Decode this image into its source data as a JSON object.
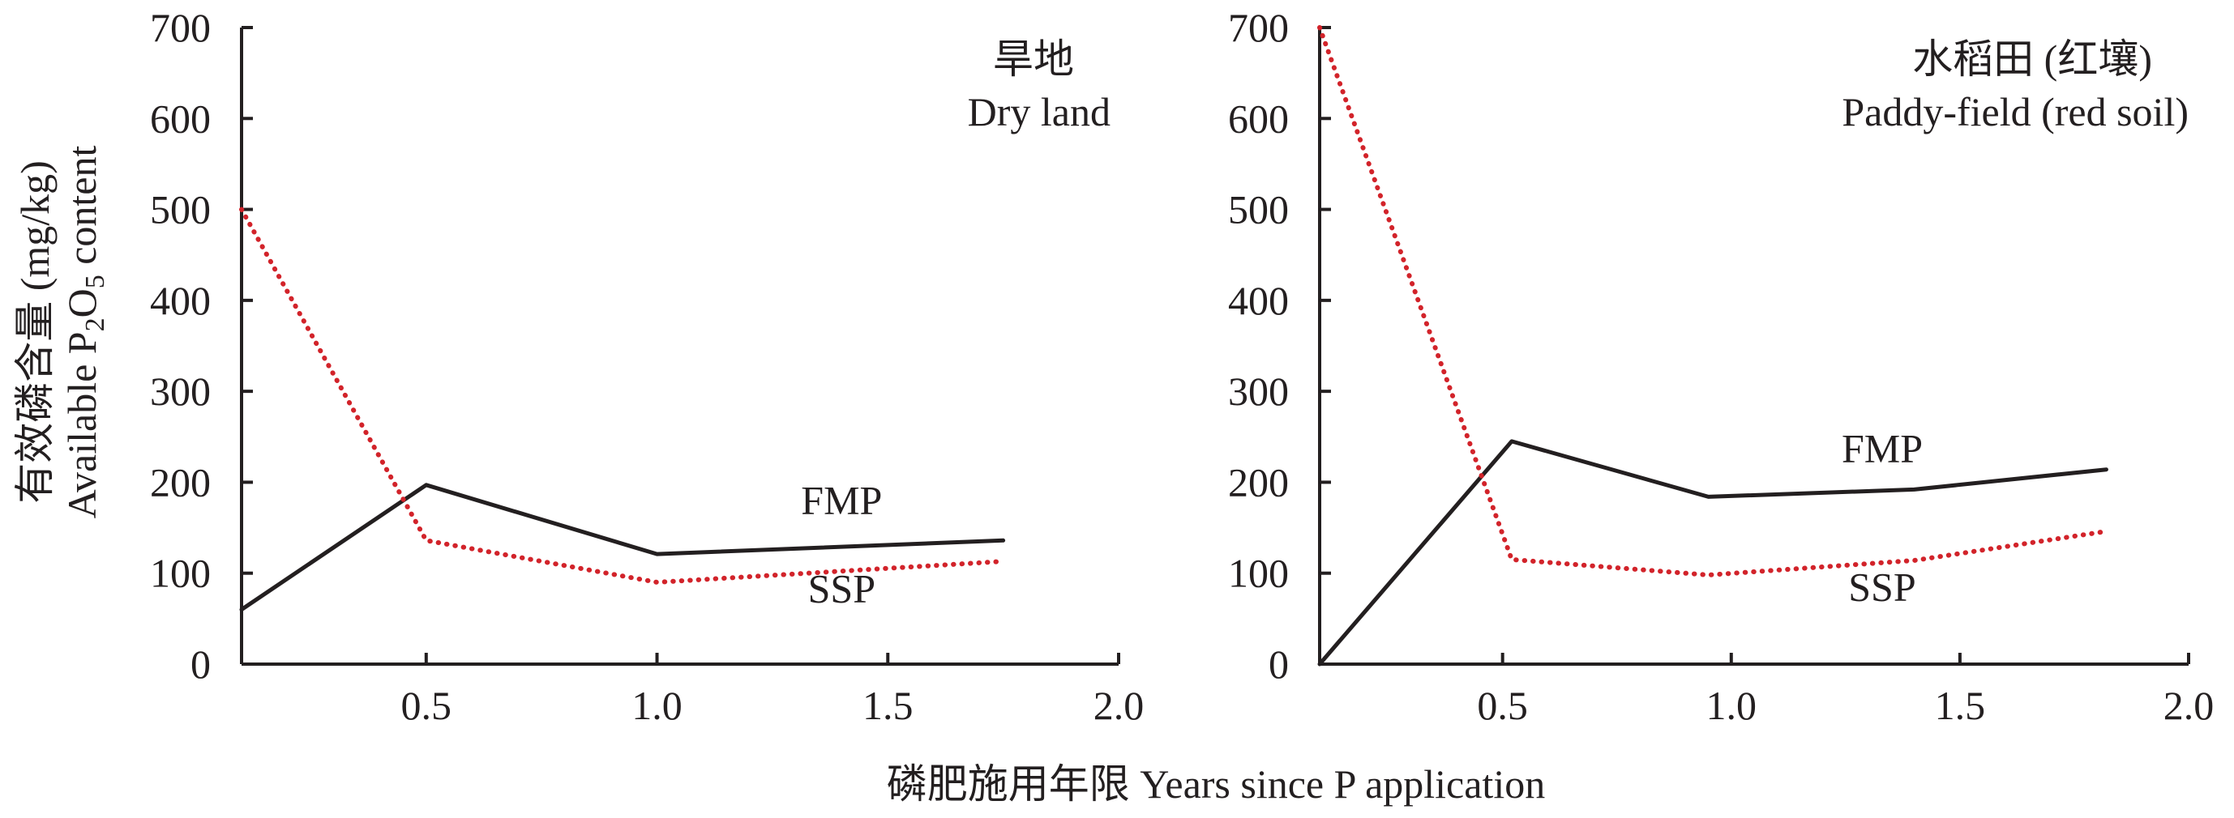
{
  "y_axis": {
    "label_cn": "有效磷含量 (mg/kg)",
    "label_en_pre": "Available P",
    "label_en_sub1": "2",
    "label_en_mid": "O",
    "label_en_sub2": "5",
    "label_en_post": " content"
  },
  "x_axis": {
    "label": "磷肥施用年限 Years since P application"
  },
  "colors": {
    "FMP": "#231f20",
    "SSP": "#d2232a"
  },
  "chart_data": [
    {
      "type": "line",
      "title_cn": "旱地",
      "title_en": "Dry land",
      "xlim": [
        0.1,
        2.0
      ],
      "ylim": [
        0,
        700
      ],
      "xticks": [
        0.5,
        1.0,
        1.5,
        2.0
      ],
      "xtick_labels": [
        "0.5",
        "1.0",
        "1.5",
        "2.0"
      ],
      "yticks": [
        0,
        100,
        200,
        300,
        400,
        500,
        600,
        700
      ],
      "ytick_labels": [
        "0",
        "100",
        "200",
        "300",
        "400",
        "500",
        "600",
        "700"
      ],
      "series": [
        {
          "name": "FMP",
          "style": "solid",
          "label_x": 1.4,
          "label_y": 165,
          "x": [
            0.1,
            0.5,
            1.0,
            1.75
          ],
          "y": [
            60,
            197,
            121,
            136
          ]
        },
        {
          "name": "SSP",
          "style": "dotted",
          "label_x": 1.4,
          "label_y": 68,
          "x": [
            0.1,
            0.5,
            1.0,
            1.75
          ],
          "y": [
            500,
            136,
            90,
            113
          ]
        }
      ]
    },
    {
      "type": "line",
      "title_cn": "水稻田 (红壤)",
      "title_en": "Paddy-field (red soil)",
      "xlim": [
        0.1,
        2.0
      ],
      "ylim": [
        0,
        700
      ],
      "xticks": [
        0.5,
        1.0,
        1.5,
        2.0
      ],
      "xtick_labels": [
        "0.5",
        "1.0",
        "1.5",
        "2.0"
      ],
      "yticks": [
        0,
        100,
        200,
        300,
        400,
        500,
        600,
        700
      ],
      "ytick_labels": [
        "0",
        "100",
        "200",
        "300",
        "400",
        "500",
        "600",
        "700"
      ],
      "series": [
        {
          "name": "FMP",
          "style": "solid",
          "label_x": 1.33,
          "label_y": 222,
          "x": [
            0.1,
            0.52,
            0.95,
            1.4,
            1.82
          ],
          "y": [
            0,
            245,
            184,
            192,
            214
          ]
        },
        {
          "name": "SSP",
          "style": "dotted",
          "label_x": 1.33,
          "label_y": 70,
          "x": [
            0.1,
            0.52,
            0.95,
            1.4,
            1.82
          ],
          "y": [
            700,
            115,
            98,
            114,
            146
          ]
        }
      ]
    }
  ]
}
